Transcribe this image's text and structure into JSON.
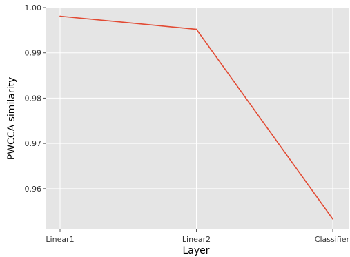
{
  "chart_data": {
    "type": "line",
    "title": "",
    "xlabel": "Layer",
    "ylabel": "PWCCA similarity",
    "categories": [
      "Linear1",
      "Linear2",
      "Classifier"
    ],
    "series": [
      {
        "values": [
          0.9981,
          0.9952,
          0.9533
        ],
        "color": "#E24A33"
      }
    ],
    "ylim": [
      0.951,
      1.0
    ],
    "yticks": [
      "0.96",
      "0.97",
      "0.98",
      "0.99",
      "1.00"
    ],
    "grid": true,
    "plot_background": "#E5E5E5",
    "grid_color": "#FFFFFF"
  }
}
